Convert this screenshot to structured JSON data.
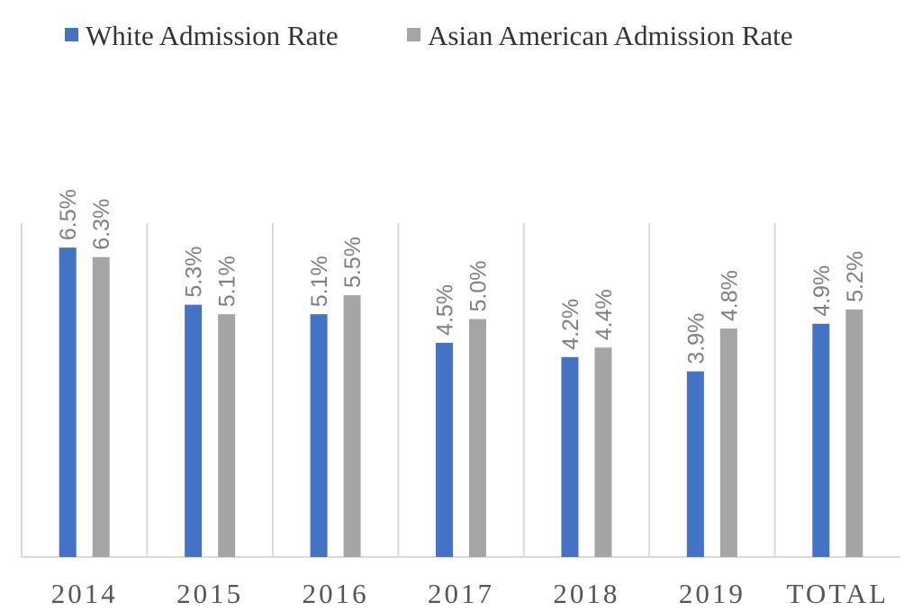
{
  "chart_data": {
    "type": "bar",
    "title": "",
    "xlabel": "",
    "ylabel": "",
    "categories": [
      "2014",
      "2015",
      "2016",
      "2017",
      "2018",
      "2019",
      "TOTAL"
    ],
    "series": [
      {
        "name": "White Admission Rate",
        "color": "#4472c4",
        "values": [
          6.5,
          5.3,
          5.1,
          4.5,
          4.2,
          3.9,
          4.9
        ],
        "labels": [
          "6.5%",
          "5.3%",
          "5.1%",
          "4.5%",
          "4.2%",
          "3.9%",
          "4.9%"
        ]
      },
      {
        "name": "Asian American Admission Rate",
        "color": "#a5a5a5",
        "values": [
          6.3,
          5.1,
          5.5,
          5.0,
          4.4,
          4.8,
          5.2
        ],
        "labels": [
          "6.3%",
          "5.1%",
          "5.5%",
          "5.0%",
          "4.4%",
          "4.8%",
          "5.2%"
        ]
      }
    ],
    "unit": "%",
    "ylim": [
      0,
      7.0
    ],
    "grid": "vertical category separators",
    "legend": "top",
    "data_labels": "rotated, above bars"
  }
}
